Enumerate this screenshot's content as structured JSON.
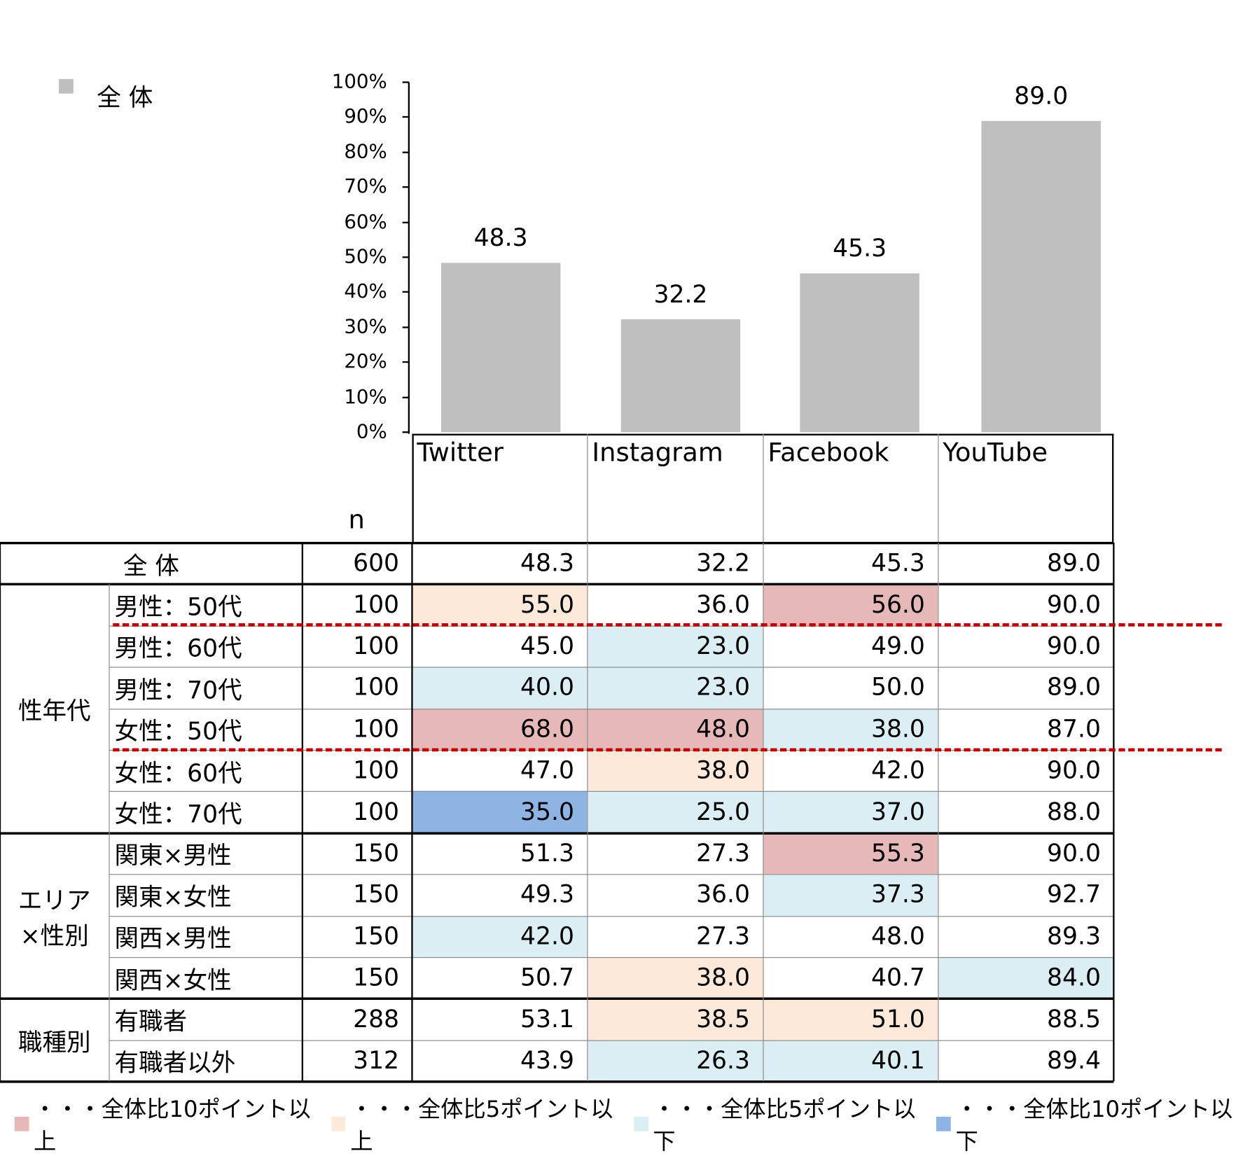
{
  "chart_data": {
    "type": "bar",
    "legend": "全 体",
    "categories": [
      "Twitter",
      "Instagram",
      "Facebook",
      "YouTube"
    ],
    "values": [
      48.3,
      32.2,
      45.3,
      89.0
    ],
    "value_labels": [
      "48.3",
      "32.2",
      "45.3",
      "89.0"
    ],
    "ylim": [
      0,
      100
    ],
    "yticks": [
      "0%",
      "10%",
      "20%",
      "30%",
      "40%",
      "50%",
      "60%",
      "70%",
      "80%",
      "90%",
      "100%"
    ],
    "bar_color": "#bfbfbf"
  },
  "table": {
    "n_header": "n",
    "total": {
      "label": "全 体",
      "n": "600",
      "values": [
        "48.3",
        "32.2",
        "45.3",
        "89.0"
      ]
    },
    "groups": [
      {
        "label": "性年代",
        "rows": [
          {
            "label": "男性：50代",
            "n": "100",
            "values": [
              "55.0",
              "36.0",
              "56.0",
              "90.0"
            ],
            "marks": [
              "o",
              "",
              "p",
              ""
            ]
          },
          {
            "label": "男性：60代",
            "n": "100",
            "values": [
              "45.0",
              "23.0",
              "49.0",
              "90.0"
            ],
            "marks": [
              "",
              "l",
              "",
              ""
            ]
          },
          {
            "label": "男性：70代",
            "n": "100",
            "values": [
              "40.0",
              "23.0",
              "50.0",
              "89.0"
            ],
            "marks": [
              "l",
              "l",
              "",
              ""
            ]
          },
          {
            "label": "女性：50代",
            "n": "100",
            "values": [
              "68.0",
              "48.0",
              "38.0",
              "87.0"
            ],
            "marks": [
              "p",
              "p",
              "l",
              ""
            ]
          },
          {
            "label": "女性：60代",
            "n": "100",
            "values": [
              "47.0",
              "38.0",
              "42.0",
              "90.0"
            ],
            "marks": [
              "",
              "o",
              "",
              ""
            ]
          },
          {
            "label": "女性：70代",
            "n": "100",
            "values": [
              "35.0",
              "25.0",
              "37.0",
              "88.0"
            ],
            "marks": [
              "b",
              "l",
              "l",
              ""
            ]
          }
        ]
      },
      {
        "label": "エリア×性別",
        "rows": [
          {
            "label": "関東×男性",
            "n": "150",
            "values": [
              "51.3",
              "27.3",
              "55.3",
              "90.0"
            ],
            "marks": [
              "",
              "",
              "p",
              ""
            ]
          },
          {
            "label": "関東×女性",
            "n": "150",
            "values": [
              "49.3",
              "36.0",
              "37.3",
              "92.7"
            ],
            "marks": [
              "",
              "",
              "l",
              ""
            ]
          },
          {
            "label": "関西×男性",
            "n": "150",
            "values": [
              "42.0",
              "27.3",
              "48.0",
              "89.3"
            ],
            "marks": [
              "l",
              "",
              "",
              ""
            ]
          },
          {
            "label": "関西×女性",
            "n": "150",
            "values": [
              "50.7",
              "38.0",
              "40.7",
              "84.0"
            ],
            "marks": [
              "",
              "o",
              "",
              "l"
            ]
          }
        ]
      },
      {
        "label": "職種別",
        "rows": [
          {
            "label": "有職者",
            "n": "288",
            "values": [
              "53.1",
              "38.5",
              "51.0",
              "88.5"
            ],
            "marks": [
              "",
              "o",
              "o",
              ""
            ]
          },
          {
            "label": "有職者以外",
            "n": "312",
            "values": [
              "43.9",
              "26.3",
              "40.1",
              "89.4"
            ],
            "marks": [
              "",
              "l",
              "l",
              ""
            ]
          }
        ]
      }
    ]
  },
  "colors": {
    "p": "#e6b9b8",
    "o": "#fde9d9",
    "l": "#daeef3",
    "b": "#8eb4e3"
  },
  "legend": [
    {
      "mark": "p",
      "label": "・・・全体比10ポイント以上"
    },
    {
      "mark": "o",
      "label": "・・・全体比5ポイント以上"
    },
    {
      "mark": "l",
      "label": "・・・全体比5ポイント以下"
    },
    {
      "mark": "b",
      "label": "・・・全体比10ポイント以下"
    }
  ]
}
